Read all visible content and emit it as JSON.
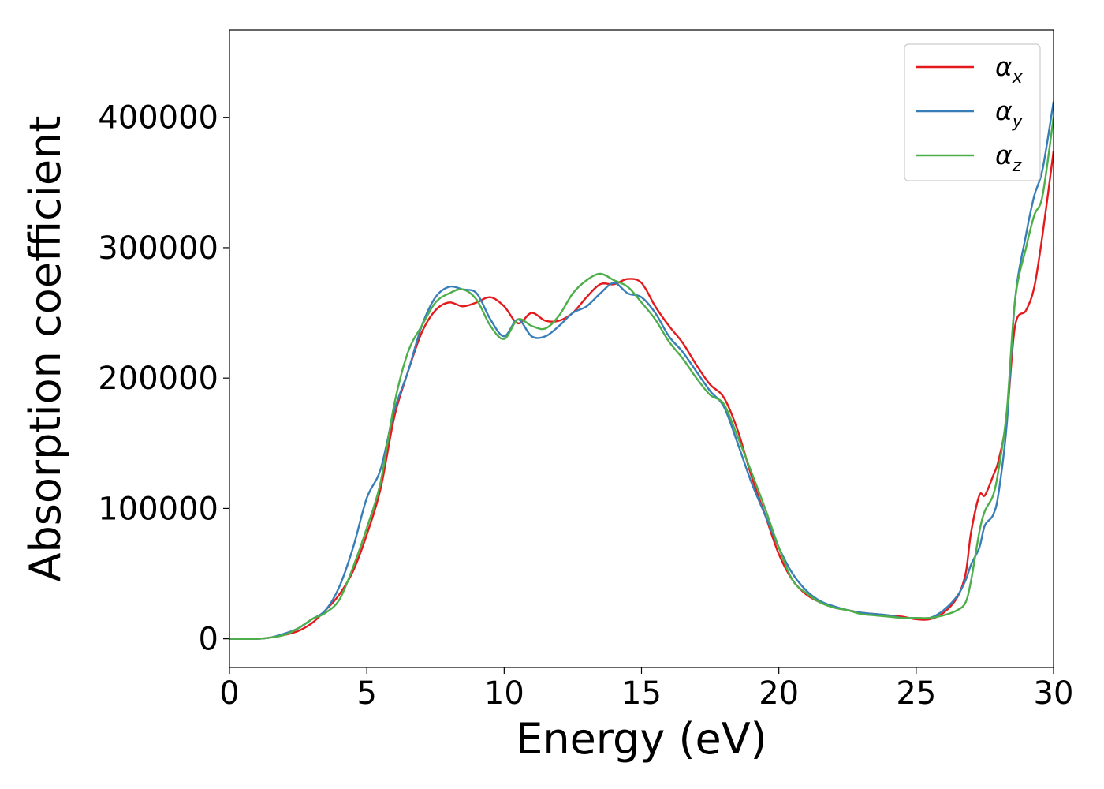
{
  "chart_data": {
    "type": "line",
    "title": "",
    "xlabel": "Energy (eV)",
    "ylabel": "Absorption coefficient",
    "xlim": [
      0,
      30
    ],
    "ylim": [
      -22000,
      467000
    ],
    "xticks": [
      0,
      5,
      10,
      15,
      20,
      25,
      30
    ],
    "xtick_labels": [
      "0",
      "5",
      "10",
      "15",
      "20",
      "25",
      "30"
    ],
    "yticks": [
      0,
      100000,
      200000,
      300000,
      400000
    ],
    "ytick_labels": [
      "0",
      "100000",
      "200000",
      "300000",
      "400000"
    ],
    "grid": false,
    "legend_position": "top-right",
    "series": [
      {
        "name": "α_x",
        "symbol": "α",
        "subscript": "x",
        "color": "#e41a1c",
        "x": [
          0,
          1,
          1.5,
          2,
          2.5,
          3,
          3.5,
          4,
          4.5,
          5,
          5.5,
          6,
          6.5,
          7,
          7.5,
          8,
          8.5,
          9,
          9.5,
          10,
          10.5,
          11,
          11.5,
          12,
          12.5,
          13,
          13.5,
          14,
          14.5,
          15,
          15.5,
          16,
          16.5,
          17,
          17.5,
          18,
          18.5,
          19,
          19.5,
          20,
          20.5,
          21,
          21.5,
          22,
          22.5,
          23,
          23.5,
          24,
          24.5,
          25,
          25.5,
          26,
          26.5,
          26.8,
          27,
          27.3,
          27.5,
          27.8,
          28,
          28.3,
          28.6,
          29,
          29.3,
          29.6,
          30
        ],
        "y": [
          0,
          0,
          1000,
          3000,
          6000,
          12000,
          22000,
          34000,
          52000,
          80000,
          115000,
          170000,
          205000,
          235000,
          252000,
          258000,
          255000,
          258000,
          262000,
          255000,
          242000,
          250000,
          244000,
          244000,
          250000,
          262000,
          272000,
          272000,
          276000,
          273000,
          255000,
          240000,
          227000,
          210000,
          195000,
          185000,
          160000,
          125000,
          95000,
          65000,
          45000,
          34000,
          28000,
          24000,
          22000,
          20000,
          19000,
          18000,
          17000,
          15000,
          15000,
          20000,
          32000,
          50000,
          82000,
          110000,
          110000,
          125000,
          137000,
          170000,
          240000,
          252000,
          270000,
          310000,
          374000
        ]
      },
      {
        "name": "α_y",
        "symbol": "α",
        "subscript": "y",
        "color": "#377eb8",
        "x": [
          0,
          1,
          1.5,
          2,
          2.5,
          3,
          3.5,
          4,
          4.5,
          5,
          5.5,
          6,
          6.5,
          7,
          7.5,
          8,
          8.5,
          9,
          9.5,
          10,
          10.5,
          11,
          11.5,
          12,
          12.5,
          13,
          13.5,
          14,
          14.5,
          15,
          15.5,
          16,
          16.5,
          17,
          17.5,
          18,
          18.5,
          19,
          19.5,
          20,
          20.5,
          21,
          21.5,
          22,
          22.5,
          23,
          23.5,
          24,
          24.5,
          25,
          25.5,
          26,
          26.5,
          26.8,
          27,
          27.3,
          27.5,
          27.8,
          28,
          28.3,
          28.6,
          29,
          29.3,
          29.6,
          30
        ],
        "y": [
          0,
          0,
          1000,
          4000,
          8000,
          15000,
          22000,
          40000,
          70000,
          108000,
          130000,
          175000,
          205000,
          240000,
          262000,
          270000,
          268000,
          265000,
          245000,
          232000,
          245000,
          232000,
          232000,
          240000,
          250000,
          255000,
          265000,
          273000,
          265000,
          262000,
          250000,
          232000,
          220000,
          205000,
          190000,
          178000,
          150000,
          120000,
          95000,
          70000,
          50000,
          37000,
          29000,
          25000,
          22000,
          20000,
          19000,
          18000,
          16000,
          16000,
          16000,
          22000,
          33000,
          45000,
          57000,
          70000,
          87000,
          95000,
          112000,
          165000,
          260000,
          310000,
          340000,
          360000,
          412000
        ]
      },
      {
        "name": "α_z",
        "symbol": "α",
        "subscript": "z",
        "color": "#4daf4a",
        "x": [
          0,
          1,
          1.5,
          2,
          2.5,
          3,
          3.5,
          4,
          4.5,
          5,
          5.5,
          6,
          6.5,
          7,
          7.5,
          8,
          8.5,
          9,
          9.5,
          10,
          10.5,
          11,
          11.5,
          12,
          12.5,
          13,
          13.5,
          14,
          14.5,
          15,
          15.5,
          16,
          16.5,
          17,
          17.5,
          18,
          18.5,
          19,
          19.5,
          20,
          20.5,
          21,
          21.5,
          22,
          22.5,
          23,
          23.5,
          24,
          24.5,
          25,
          25.5,
          26,
          26.5,
          26.8,
          27,
          27.3,
          27.5,
          27.8,
          28,
          28.3,
          28.6,
          29,
          29.3,
          29.6,
          30
        ],
        "y": [
          0,
          0,
          1000,
          3000,
          8000,
          15000,
          20000,
          30000,
          55000,
          85000,
          120000,
          180000,
          220000,
          240000,
          258000,
          265000,
          268000,
          260000,
          240000,
          230000,
          245000,
          240000,
          238000,
          248000,
          265000,
          275000,
          280000,
          275000,
          270000,
          258000,
          245000,
          228000,
          215000,
          200000,
          187000,
          180000,
          155000,
          128000,
          100000,
          70000,
          45000,
          35000,
          28000,
          24000,
          22000,
          19000,
          18000,
          17000,
          16000,
          16000,
          16000,
          18000,
          22000,
          28000,
          45000,
          82000,
          98000,
          110000,
          130000,
          175000,
          260000,
          300000,
          325000,
          340000,
          400000
        ]
      }
    ]
  }
}
